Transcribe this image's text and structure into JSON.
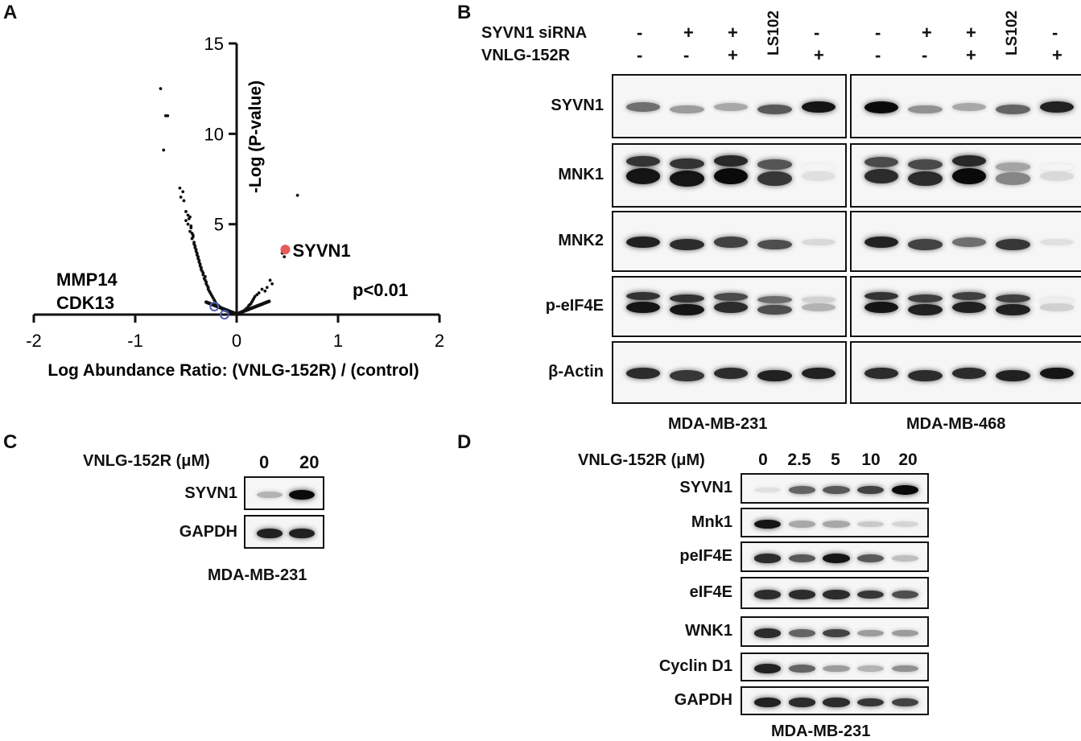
{
  "panels": {
    "A": {
      "letter": "A",
      "chart_data": {
        "type": "scatter",
        "xlabel": "Log Abundance Ratio: (VNLG-152R) / (control)",
        "ylabel": "-Log (P-value)",
        "xlim": [
          -2,
          2
        ],
        "ylim": [
          0,
          15
        ],
        "x_ticks": [
          "-2",
          "-1",
          "0",
          "1",
          "2"
        ],
        "y_ticks": [
          "5",
          "10",
          "15"
        ],
        "annotation": "p<0.01",
        "highlight": {
          "name": "SYVN1",
          "x": 0.48,
          "y": 3.6,
          "color": "#e55b5b"
        },
        "labels_blue": [
          {
            "name": "MMP14",
            "x": -0.22,
            "y": 0.8
          },
          {
            "name": "CDK13",
            "x": -0.12,
            "y": 0.35
          }
        ],
        "points_x": [
          -0.75,
          -0.7,
          -0.68,
          -0.72,
          -0.56,
          -0.53,
          -0.55,
          -0.52,
          -0.5,
          -0.48,
          -0.47,
          -0.46,
          -0.45,
          -0.44,
          -0.43,
          -0.42,
          -0.41,
          -0.4,
          -0.39,
          -0.38,
          -0.37,
          -0.36,
          -0.35,
          -0.34,
          -0.33,
          -0.32,
          -0.31,
          -0.3,
          -0.29,
          -0.28,
          -0.27,
          -0.26,
          -0.25,
          -0.24,
          -0.23,
          -0.22,
          -0.21,
          -0.2,
          -0.19,
          -0.18,
          -0.17,
          -0.16,
          -0.15,
          -0.14,
          -0.13,
          -0.12,
          -0.11,
          -0.1,
          -0.09,
          -0.08,
          -0.07,
          -0.06,
          -0.05,
          -0.04,
          -0.03,
          -0.02,
          -0.01,
          0.0,
          0.01,
          0.02,
          0.03,
          0.04,
          0.05,
          0.06,
          0.07,
          0.08,
          0.09,
          0.1,
          0.11,
          0.12,
          0.13,
          0.14,
          0.15,
          0.16,
          0.17,
          0.18,
          0.2,
          0.22,
          0.25,
          0.28,
          0.3,
          0.33,
          0.35,
          0.45,
          0.47,
          0.6,
          -0.5,
          -0.48,
          -0.46,
          -0.44,
          -0.42,
          -0.4,
          -0.38,
          -0.36,
          -0.45,
          -0.43,
          -0.41,
          -0.39,
          -0.37,
          -0.35,
          -0.33,
          -0.31,
          -0.3,
          -0.28,
          -0.26
        ],
        "points_y": [
          12.5,
          11.0,
          11.0,
          9.1,
          7.0,
          6.8,
          6.5,
          6.3,
          5.7,
          5.5,
          5.3,
          5.4,
          4.8,
          4.5,
          4.3,
          4.0,
          3.8,
          3.6,
          3.4,
          3.2,
          3.0,
          2.8,
          2.6,
          2.4,
          2.2,
          2.0,
          1.9,
          1.7,
          1.6,
          1.5,
          1.3,
          1.2,
          1.1,
          1.0,
          0.9,
          0.8,
          0.7,
          0.6,
          0.55,
          0.5,
          0.45,
          0.4,
          0.35,
          0.3,
          0.28,
          0.25,
          0.22,
          0.2,
          0.18,
          0.15,
          0.12,
          0.1,
          0.08,
          0.06,
          0.05,
          0.04,
          0.03,
          0.02,
          0.05,
          0.08,
          0.1,
          0.12,
          0.15,
          0.18,
          0.2,
          0.25,
          0.3,
          0.35,
          0.4,
          0.5,
          0.55,
          0.6,
          0.7,
          0.8,
          0.9,
          1.0,
          1.1,
          1.2,
          1.4,
          1.3,
          1.5,
          1.9,
          1.7,
          3.4,
          3.2,
          6.6,
          5.2,
          5.0,
          4.6,
          4.2,
          3.9,
          3.5,
          3.1,
          2.7,
          4.9,
          4.4,
          3.7,
          3.3,
          2.9,
          2.5,
          2.3,
          2.1,
          1.8,
          1.4,
          1.2
        ]
      }
    },
    "B": {
      "letter": "B",
      "row_labels": [
        "SYVN1 siRNA",
        "VNLG-152R"
      ],
      "lanes_231": [
        [
          "-",
          "+",
          "+",
          "LS102",
          "-"
        ],
        [
          "-",
          "-",
          "+",
          "",
          "+"
        ]
      ],
      "lanes_468": [
        [
          "-",
          "+",
          "+",
          "LS102",
          "-"
        ],
        [
          "-",
          "-",
          "+",
          "",
          "+"
        ]
      ],
      "blots": [
        "SYVN1",
        "MNK1",
        "MNK2",
        "p-eIF4E",
        "β-Actin"
      ],
      "intensity_231": [
        [
          0.55,
          0.35,
          0.3,
          0.65,
          0.95
        ],
        [
          0.95,
          0.95,
          1.0,
          0.8,
          0.05
        ],
        [
          0.9,
          0.85,
          0.75,
          0.7,
          0.08
        ],
        [
          0.95,
          0.95,
          0.85,
          0.7,
          0.25
        ],
        [
          0.85,
          0.8,
          0.85,
          0.9,
          0.9
        ]
      ],
      "intensity_468": [
        [
          1.0,
          0.4,
          0.3,
          0.6,
          0.9
        ],
        [
          0.85,
          0.85,
          1.0,
          0.45,
          0.08
        ],
        [
          0.9,
          0.75,
          0.55,
          0.8,
          0.05
        ],
        [
          0.95,
          0.9,
          0.9,
          0.9,
          0.12
        ],
        [
          0.85,
          0.85,
          0.85,
          0.9,
          0.95
        ]
      ],
      "cell_lines": [
        "MDA-MB-231",
        "MDA-MB-468"
      ]
    },
    "C": {
      "letter": "C",
      "header": "VNLG-152R (μM)",
      "doses": [
        "0",
        "20"
      ],
      "blots": [
        "SYVN1",
        "GAPDH"
      ],
      "intensity": [
        [
          0.25,
          1.0
        ],
        [
          0.9,
          0.9
        ]
      ],
      "cell_line": "MDA-MB-231"
    },
    "D": {
      "letter": "D",
      "header": "VNLG-152R (μM)",
      "doses": [
        "0",
        "2.5",
        "5",
        "10",
        "20"
      ],
      "blots": [
        "SYVN1",
        "Mnk1",
        "peIF4E",
        "eIF4E",
        "WNK1",
        "Cyclin D1",
        "GAPDH"
      ],
      "intensity": [
        [
          0.05,
          0.6,
          0.65,
          0.75,
          1.0
        ],
        [
          0.95,
          0.3,
          0.3,
          0.15,
          0.1
        ],
        [
          0.85,
          0.65,
          0.95,
          0.65,
          0.2
        ],
        [
          0.85,
          0.85,
          0.85,
          0.8,
          0.7
        ],
        [
          0.85,
          0.6,
          0.75,
          0.35,
          0.35
        ],
        [
          0.9,
          0.6,
          0.35,
          0.25,
          0.4
        ],
        [
          0.9,
          0.85,
          0.85,
          0.8,
          0.75
        ]
      ],
      "cell_line": "MDA-MB-231"
    }
  }
}
